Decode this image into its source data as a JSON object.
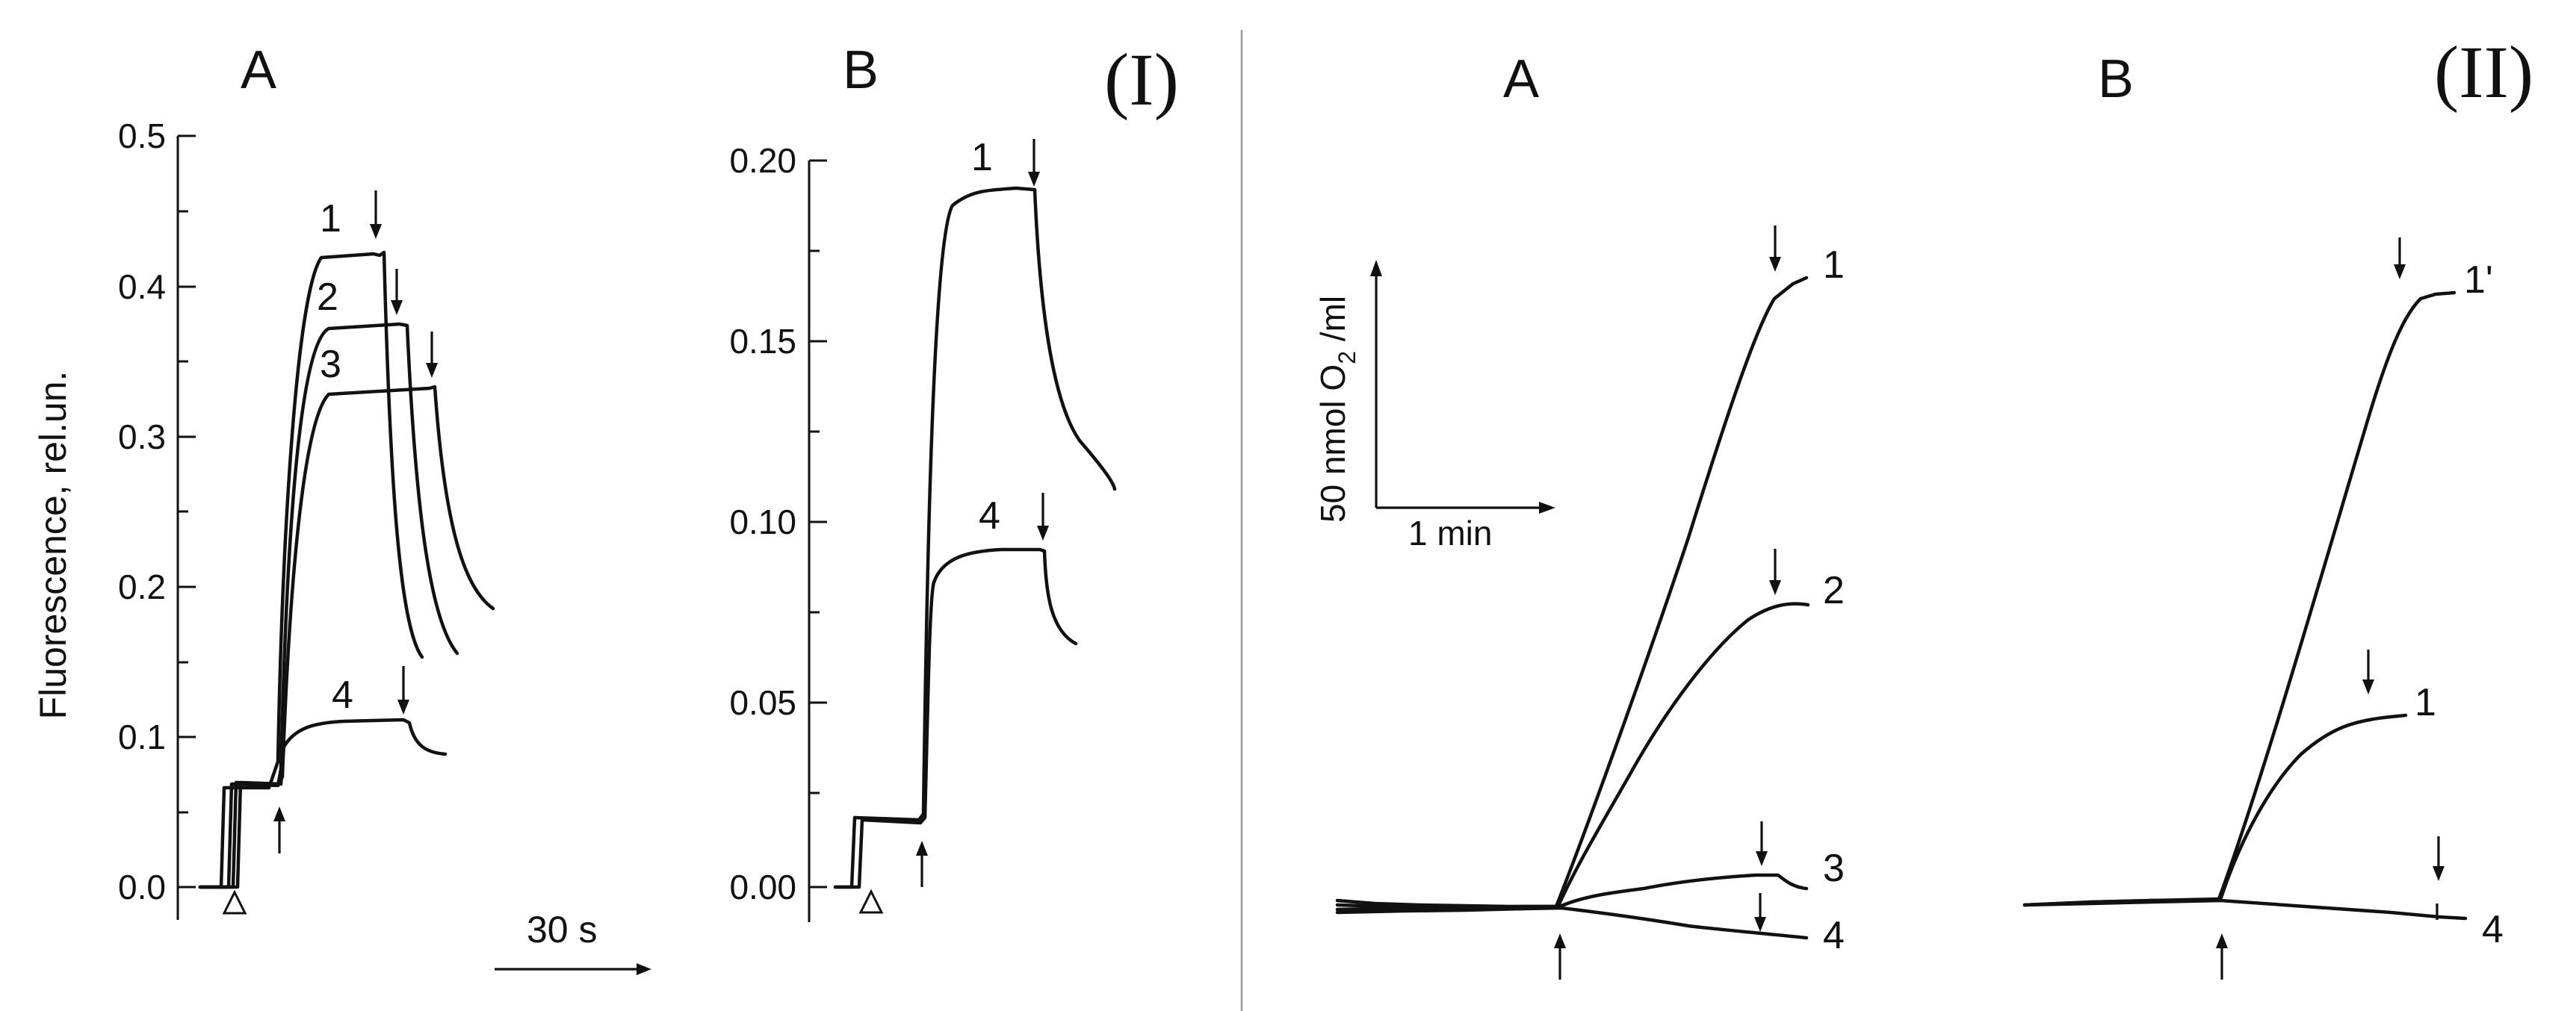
{
  "panel_labels": {
    "left_group": "(I)",
    "right_group": "(II)",
    "IA": "A",
    "IB": "B",
    "IIA": "A",
    "IIB": "B"
  },
  "chart_data": [
    {
      "id": "I-A",
      "type": "line",
      "ylabel": "Fluorescence, rel.un.",
      "ylim": [
        0,
        0.5
      ],
      "yticks": [
        "0.0",
        "0.1",
        "0.2",
        "0.3",
        "0.4",
        "0.5"
      ],
      "time_scale_bar": "30 s",
      "series": [
        {
          "name": "1",
          "plateau": 0.42
        },
        {
          "name": "2",
          "plateau": 0.375
        },
        {
          "name": "3",
          "plateau": 0.33
        },
        {
          "name": "4",
          "plateau": 0.11
        }
      ]
    },
    {
      "id": "I-B",
      "type": "line",
      "ylim": [
        0,
        0.2
      ],
      "yticks": [
        "0.00",
        "0.05",
        "0.10",
        "0.15",
        "0.20"
      ],
      "series": [
        {
          "name": "1",
          "plateau": 0.192
        },
        {
          "name": "4",
          "plateau": 0.092
        }
      ]
    },
    {
      "id": "II-A",
      "type": "line",
      "scale_bar_y": "50  nmol O",
      "scale_bar_y_sub": "2",
      "scale_bar_y_tail": " /ml",
      "scale_bar_x": "1 min",
      "series": [
        {
          "name": "1"
        },
        {
          "name": "2"
        },
        {
          "name": "3"
        },
        {
          "name": "4"
        }
      ]
    },
    {
      "id": "II-B",
      "type": "line",
      "series": [
        {
          "name": "1'"
        },
        {
          "name": "1"
        },
        {
          "name": "4"
        }
      ]
    }
  ]
}
